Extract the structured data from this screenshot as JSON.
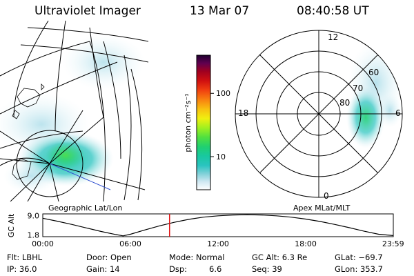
{
  "header": {
    "instrument": "Ultraviolet Imager",
    "date": "13 Mar 07",
    "time": "08:40:58 UT"
  },
  "map_labels": {
    "geographic": "Geographic Lat/Lon",
    "apex": "Apex MLat/MLT"
  },
  "colorbar": {
    "unit_label": "photon cm⁻²s⁻¹",
    "ticks": [
      "100",
      "10"
    ],
    "tick_values": [
      100,
      10
    ],
    "range": [
      3,
      400
    ],
    "scale": "log",
    "colors": [
      "#ffffff",
      "#cfe8f2",
      "#7fd0d8",
      "#2ac4c0",
      "#18c8a0",
      "#20d070",
      "#50e040",
      "#a0f020",
      "#f0f010",
      "#f8c010",
      "#f88010",
      "#f04010",
      "#d01010",
      "#a00020",
      "#600050",
      "#200030"
    ]
  },
  "polar_plot": {
    "mlt_labels": [
      "12",
      "18",
      "6",
      "0"
    ],
    "mlat_labels": [
      "80",
      "70",
      "60"
    ]
  },
  "altitude_plot": {
    "ylabel": "GC Alt",
    "yticks": [
      "9.0",
      "1.8"
    ],
    "xticks": [
      "00:00",
      "06:00",
      "12:00",
      "18:00",
      "23:59"
    ],
    "current_time_marker_hours": 8.68,
    "curve": [
      {
        "h": 0.0,
        "alt": 8.0
      },
      {
        "h": 1.0,
        "alt": 6.9
      },
      {
        "h": 2.0,
        "alt": 5.7
      },
      {
        "h": 3.0,
        "alt": 4.4
      },
      {
        "h": 4.0,
        "alt": 3.1
      },
      {
        "h": 5.0,
        "alt": 2.0
      },
      {
        "h": 5.5,
        "alt": 1.5
      },
      {
        "h": 6.0,
        "alt": 2.1
      },
      {
        "h": 7.0,
        "alt": 3.7
      },
      {
        "h": 8.0,
        "alt": 5.2
      },
      {
        "h": 9.0,
        "alt": 6.5
      },
      {
        "h": 10.0,
        "alt": 7.6
      },
      {
        "h": 11.0,
        "alt": 8.4
      },
      {
        "h": 12.0,
        "alt": 8.9
      },
      {
        "h": 13.0,
        "alt": 9.2
      },
      {
        "h": 14.0,
        "alt": 9.3
      },
      {
        "h": 15.0,
        "alt": 9.2
      },
      {
        "h": 16.0,
        "alt": 8.9
      },
      {
        "h": 17.0,
        "alt": 8.4
      },
      {
        "h": 18.0,
        "alt": 7.7
      },
      {
        "h": 19.0,
        "alt": 6.8
      },
      {
        "h": 20.0,
        "alt": 5.7
      },
      {
        "h": 21.0,
        "alt": 4.5
      },
      {
        "h": 22.0,
        "alt": 3.2
      },
      {
        "h": 23.0,
        "alt": 2.1
      },
      {
        "h": 23.99,
        "alt": 1.6
      }
    ]
  },
  "info": {
    "filter": "Flt: LBHL",
    "ip": "IP: 36.0",
    "door": "Door: Open",
    "gain": "Gain: 14",
    "mode": "Mode: Normal",
    "dsp_label": "Dsp:",
    "dsp_value": "6.6",
    "gc_alt": "GC Alt: 6.3 Re",
    "seq": "Seq: 39",
    "glat": "GLat: −69.7",
    "glon": "GLon: 353.7"
  }
}
